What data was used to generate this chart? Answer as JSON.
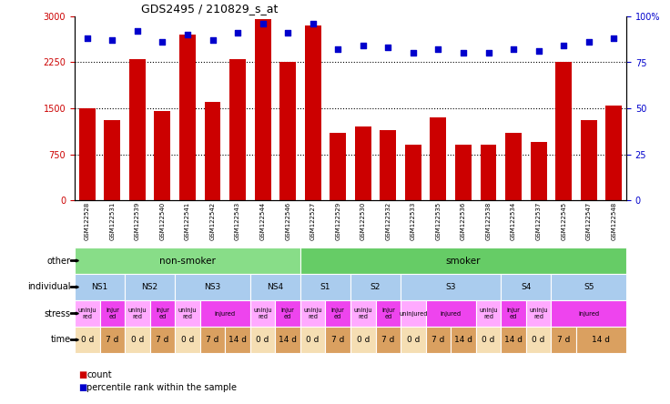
{
  "title": "GDS2495 / 210829_s_at",
  "samples": [
    "GSM122528",
    "GSM122531",
    "GSM122539",
    "GSM122540",
    "GSM122541",
    "GSM122542",
    "GSM122543",
    "GSM122544",
    "GSM122546",
    "GSM122527",
    "GSM122529",
    "GSM122530",
    "GSM122532",
    "GSM122533",
    "GSM122535",
    "GSM122536",
    "GSM122538",
    "GSM122534",
    "GSM122537",
    "GSM122545",
    "GSM122547",
    "GSM122548"
  ],
  "counts": [
    1500,
    1300,
    2300,
    1450,
    2700,
    1600,
    2300,
    2950,
    2250,
    2850,
    1100,
    1200,
    1150,
    900,
    1350,
    900,
    900,
    1100,
    950,
    2250,
    1300,
    1550
  ],
  "percentile_ranks": [
    88,
    87,
    92,
    86,
    90,
    87,
    91,
    96,
    91,
    96,
    82,
    84,
    83,
    80,
    82,
    80,
    80,
    82,
    81,
    84,
    86,
    88
  ],
  "ylim_left": [
    0,
    3000
  ],
  "ylim_right": [
    0,
    100
  ],
  "yticks_left": [
    0,
    750,
    1500,
    2250,
    3000
  ],
  "yticks_right": [
    0,
    25,
    50,
    75,
    100
  ],
  "ytick_labels_left": [
    "0",
    "750",
    "1500",
    "2250",
    "3000"
  ],
  "ytick_labels_right": [
    "0",
    "25",
    "50",
    "75",
    "100%"
  ],
  "hlines": [
    750,
    1500,
    2250
  ],
  "bar_color": "#cc0000",
  "dot_color": "#0000cc",
  "row_labels": [
    "other",
    "individual",
    "stress",
    "time"
  ],
  "other_data": [
    {
      "label": "non-smoker",
      "start": 0,
      "end": 9,
      "color": "#88dd88"
    },
    {
      "label": "smoker",
      "start": 9,
      "end": 22,
      "color": "#66cc66"
    }
  ],
  "individual_data": [
    {
      "label": "NS1",
      "start": 0,
      "end": 2,
      "color": "#aaccee"
    },
    {
      "label": "NS2",
      "start": 2,
      "end": 4,
      "color": "#aaccee"
    },
    {
      "label": "NS3",
      "start": 4,
      "end": 7,
      "color": "#aaccee"
    },
    {
      "label": "NS4",
      "start": 7,
      "end": 9,
      "color": "#aaccee"
    },
    {
      "label": "S1",
      "start": 9,
      "end": 11,
      "color": "#aaccee"
    },
    {
      "label": "S2",
      "start": 11,
      "end": 13,
      "color": "#aaccee"
    },
    {
      "label": "S3",
      "start": 13,
      "end": 17,
      "color": "#aaccee"
    },
    {
      "label": "S4",
      "start": 17,
      "end": 19,
      "color": "#aaccee"
    },
    {
      "label": "S5",
      "start": 19,
      "end": 22,
      "color": "#aaccee"
    }
  ],
  "stress_data": [
    {
      "label": "uninju\nred",
      "start": 0,
      "end": 1,
      "color": "#ffaaff"
    },
    {
      "label": "injur\ned",
      "start": 1,
      "end": 2,
      "color": "#ee44ee"
    },
    {
      "label": "uninju\nred",
      "start": 2,
      "end": 3,
      "color": "#ffaaff"
    },
    {
      "label": "injur\ned",
      "start": 3,
      "end": 4,
      "color": "#ee44ee"
    },
    {
      "label": "uninju\nred",
      "start": 4,
      "end": 5,
      "color": "#ffaaff"
    },
    {
      "label": "injured",
      "start": 5,
      "end": 7,
      "color": "#ee44ee"
    },
    {
      "label": "uninju\nred",
      "start": 7,
      "end": 8,
      "color": "#ffaaff"
    },
    {
      "label": "injur\ned",
      "start": 8,
      "end": 9,
      "color": "#ee44ee"
    },
    {
      "label": "uninju\nred",
      "start": 9,
      "end": 10,
      "color": "#ffaaff"
    },
    {
      "label": "injur\ned",
      "start": 10,
      "end": 11,
      "color": "#ee44ee"
    },
    {
      "label": "uninju\nred",
      "start": 11,
      "end": 12,
      "color": "#ffaaff"
    },
    {
      "label": "injur\ned",
      "start": 12,
      "end": 13,
      "color": "#ee44ee"
    },
    {
      "label": "uninjured",
      "start": 13,
      "end": 14,
      "color": "#ffaaff"
    },
    {
      "label": "injured",
      "start": 14,
      "end": 16,
      "color": "#ee44ee"
    },
    {
      "label": "uninju\nred",
      "start": 16,
      "end": 17,
      "color": "#ffaaff"
    },
    {
      "label": "injur\ned",
      "start": 17,
      "end": 18,
      "color": "#ee44ee"
    },
    {
      "label": "uninju\nred",
      "start": 18,
      "end": 19,
      "color": "#ffaaff"
    },
    {
      "label": "injured",
      "start": 19,
      "end": 22,
      "color": "#ee44ee"
    }
  ],
  "time_data": [
    {
      "label": "0 d",
      "start": 0,
      "end": 1,
      "color": "#f5deb3"
    },
    {
      "label": "7 d",
      "start": 1,
      "end": 2,
      "color": "#daa060"
    },
    {
      "label": "0 d",
      "start": 2,
      "end": 3,
      "color": "#f5deb3"
    },
    {
      "label": "7 d",
      "start": 3,
      "end": 4,
      "color": "#daa060"
    },
    {
      "label": "0 d",
      "start": 4,
      "end": 5,
      "color": "#f5deb3"
    },
    {
      "label": "7 d",
      "start": 5,
      "end": 6,
      "color": "#daa060"
    },
    {
      "label": "14 d",
      "start": 6,
      "end": 7,
      "color": "#daa060"
    },
    {
      "label": "0 d",
      "start": 7,
      "end": 8,
      "color": "#f5deb3"
    },
    {
      "label": "14 d",
      "start": 8,
      "end": 9,
      "color": "#daa060"
    },
    {
      "label": "0 d",
      "start": 9,
      "end": 10,
      "color": "#f5deb3"
    },
    {
      "label": "7 d",
      "start": 10,
      "end": 11,
      "color": "#daa060"
    },
    {
      "label": "0 d",
      "start": 11,
      "end": 12,
      "color": "#f5deb3"
    },
    {
      "label": "7 d",
      "start": 12,
      "end": 13,
      "color": "#daa060"
    },
    {
      "label": "0 d",
      "start": 13,
      "end": 14,
      "color": "#f5deb3"
    },
    {
      "label": "7 d",
      "start": 14,
      "end": 15,
      "color": "#daa060"
    },
    {
      "label": "14 d",
      "start": 15,
      "end": 16,
      "color": "#daa060"
    },
    {
      "label": "0 d",
      "start": 16,
      "end": 17,
      "color": "#f5deb3"
    },
    {
      "label": "14 d",
      "start": 17,
      "end": 18,
      "color": "#daa060"
    },
    {
      "label": "0 d",
      "start": 18,
      "end": 19,
      "color": "#f5deb3"
    },
    {
      "label": "7 d",
      "start": 19,
      "end": 20,
      "color": "#daa060"
    },
    {
      "label": "14 d",
      "start": 20,
      "end": 22,
      "color": "#daa060"
    }
  ],
  "legend_items": [
    {
      "label": "count",
      "color": "#cc0000"
    },
    {
      "label": "percentile rank within the sample",
      "color": "#0000cc"
    }
  ]
}
